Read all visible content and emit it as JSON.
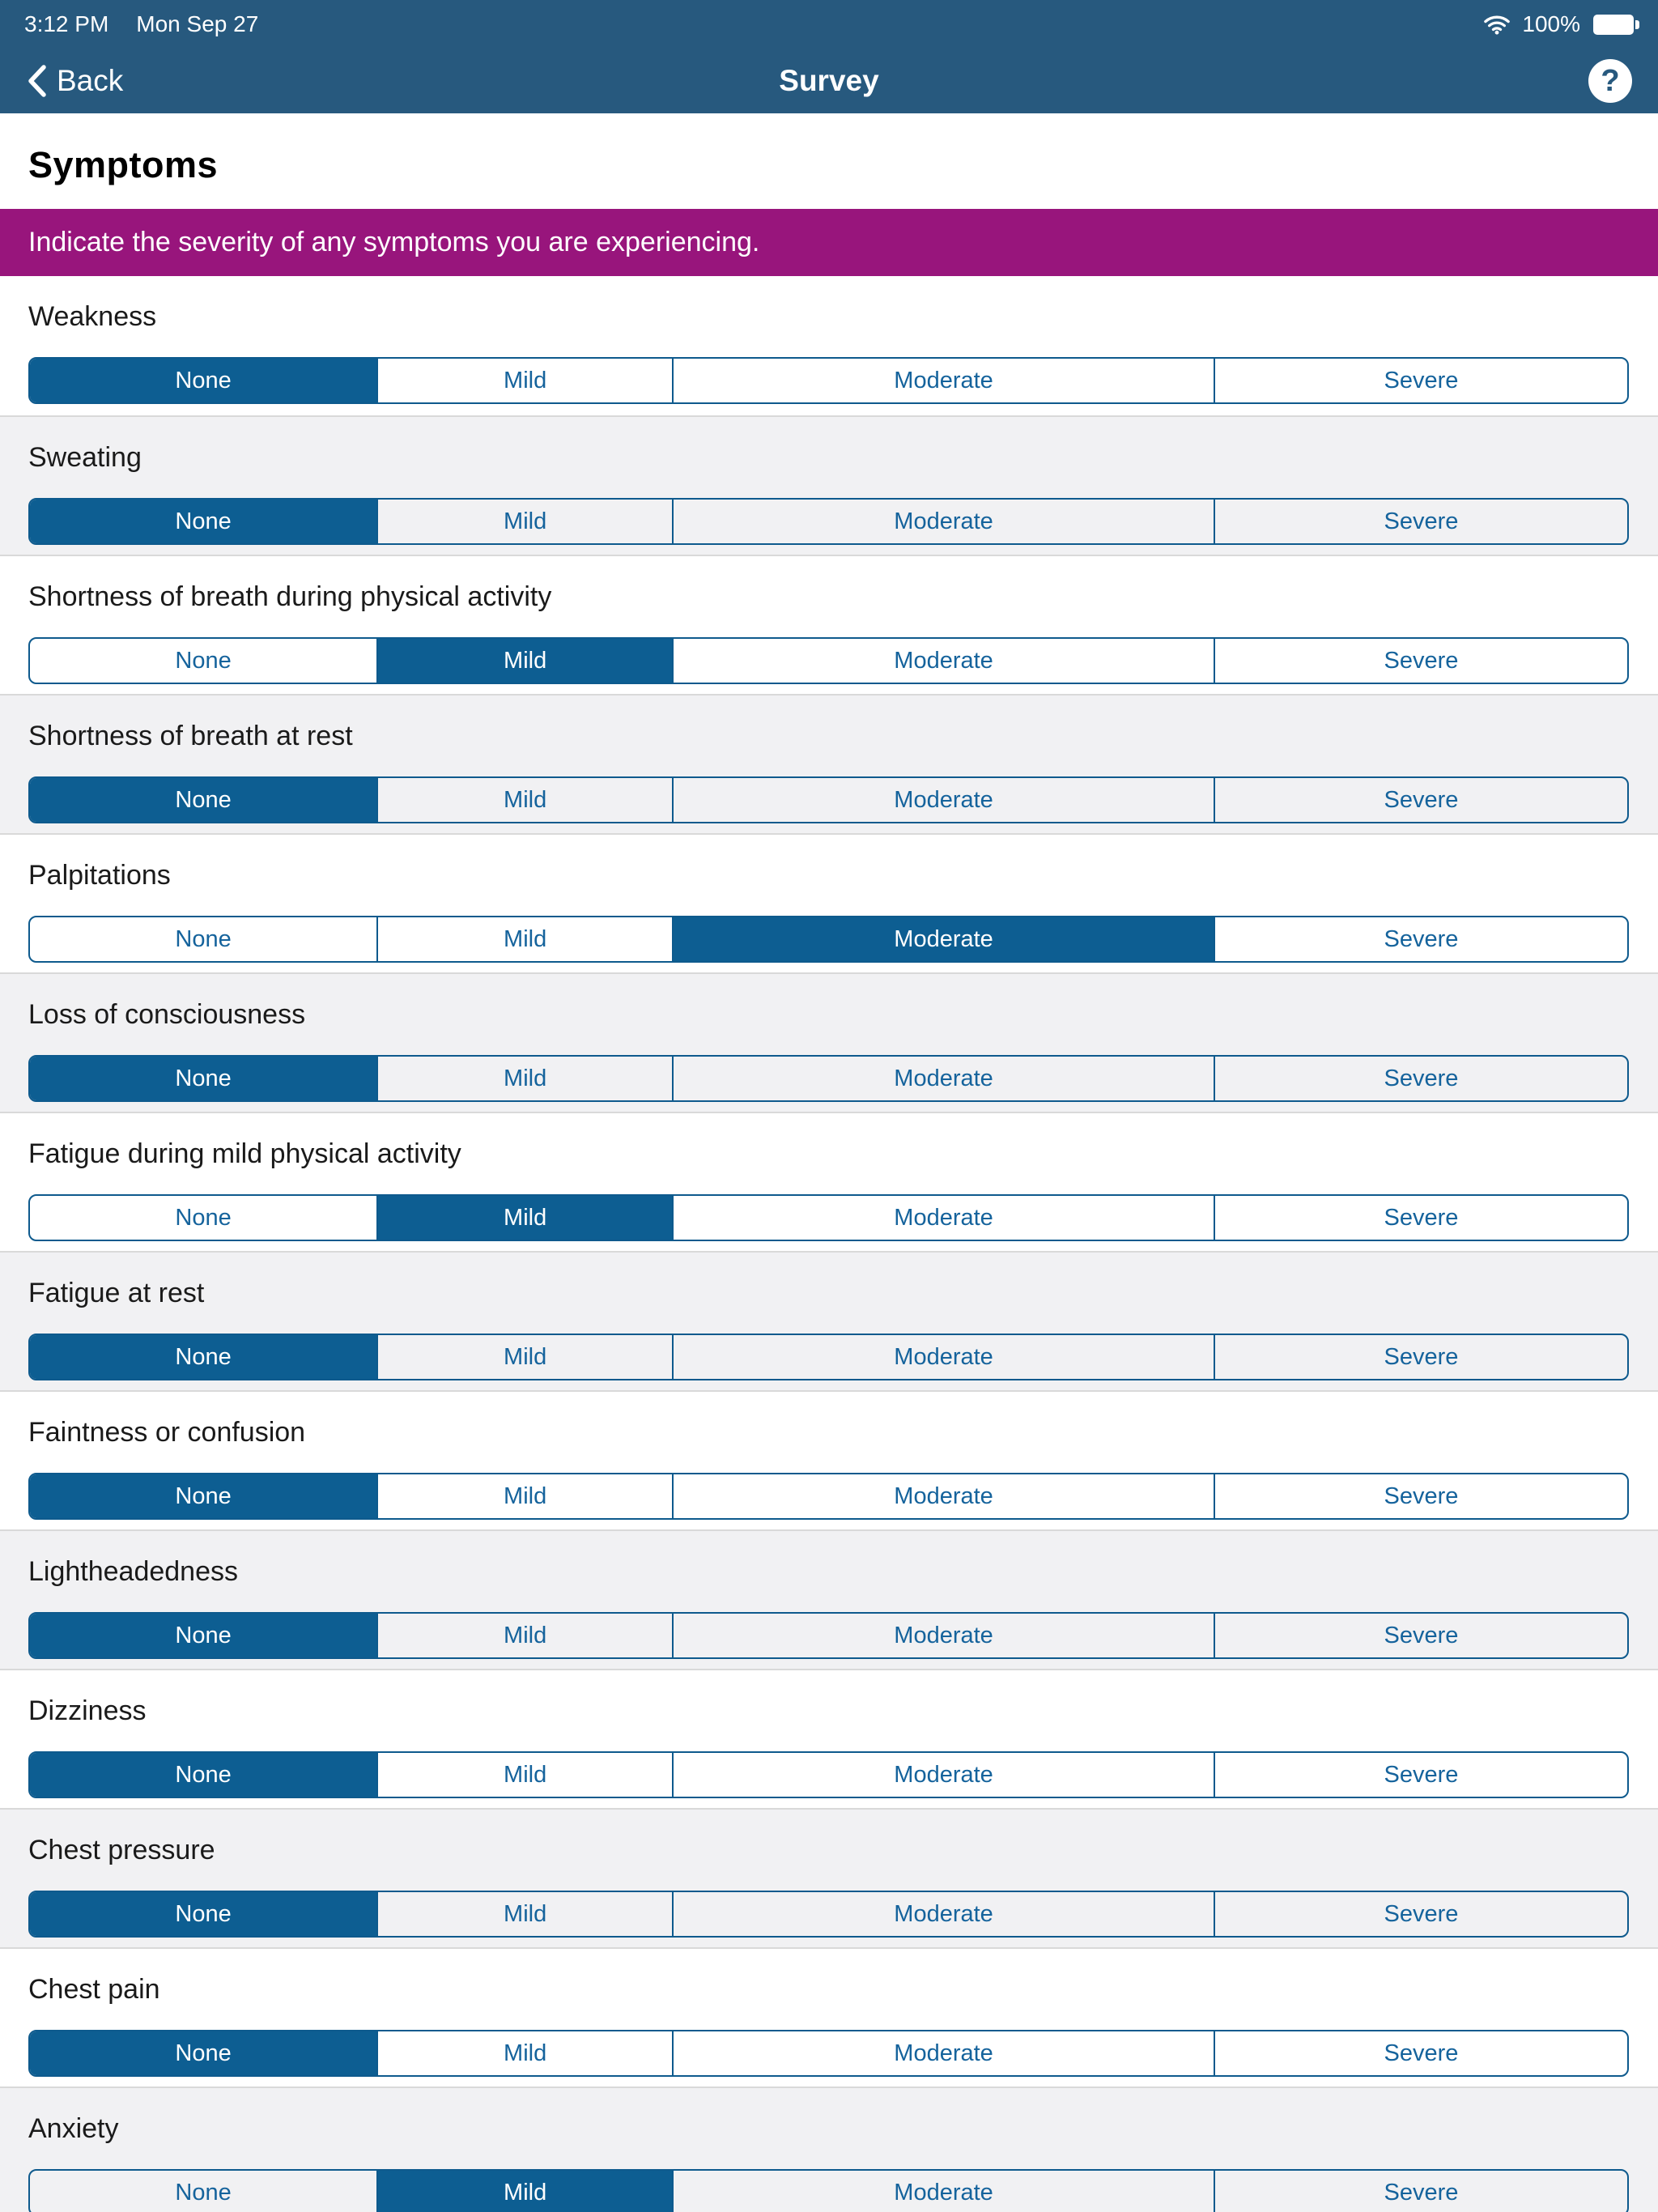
{
  "status_bar": {
    "time": "3:12 PM",
    "date": "Mon Sep 27",
    "battery_percent": "100%",
    "wifi_icon": "wifi-icon",
    "battery_icon": "battery-full-icon"
  },
  "nav": {
    "back_label": "Back",
    "title": "Survey",
    "help_label": "?"
  },
  "page": {
    "heading": "Symptoms",
    "instruction": "Indicate the severity of any symptoms you are experiencing."
  },
  "options": [
    "None",
    "Mild",
    "Moderate",
    "Severe"
  ],
  "symptoms": [
    {
      "label": "Weakness",
      "selected": 0
    },
    {
      "label": "Sweating",
      "selected": 0
    },
    {
      "label": "Shortness of breath during physical activity",
      "selected": 1
    },
    {
      "label": "Shortness of breath at rest",
      "selected": 0
    },
    {
      "label": "Palpitations",
      "selected": 2
    },
    {
      "label": "Loss of consciousness",
      "selected": 0
    },
    {
      "label": "Fatigue during mild physical activity",
      "selected": 1
    },
    {
      "label": "Fatigue at rest",
      "selected": 0
    },
    {
      "label": "Faintness or confusion",
      "selected": 0
    },
    {
      "label": "Lightheadedness",
      "selected": 0
    },
    {
      "label": "Dizziness",
      "selected": 0
    },
    {
      "label": "Chest pressure",
      "selected": 0
    },
    {
      "label": "Chest pain",
      "selected": 0
    },
    {
      "label": "Anxiety",
      "selected": 1
    }
  ],
  "colors": {
    "header_bg": "#27597e",
    "selected_segment": "#0d5e92",
    "segment_border": "#0e5a8d",
    "segment_text": "#15639c",
    "banner_bg": "#98157c",
    "alt_row_bg": "#f1f1f3",
    "divider": "#d9d9d9"
  }
}
